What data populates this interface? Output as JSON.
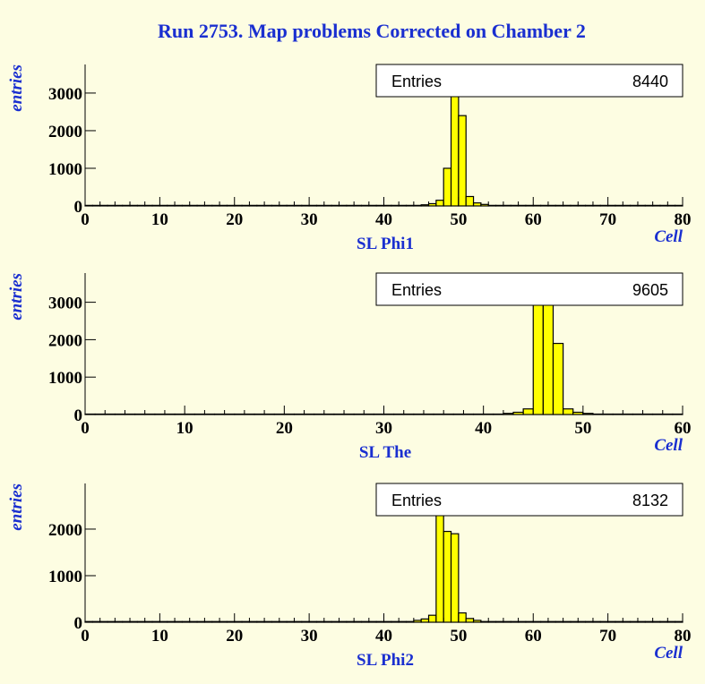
{
  "title": "Run 2753. Map problems Corrected on Chamber 2",
  "chart_data": [
    {
      "type": "histogram",
      "subtitle": "SL Phi1",
      "xlabel": "Cell",
      "ylabel": "entries",
      "color": "#ffff00",
      "stats": {
        "label": "Entries",
        "value": 8440
      },
      "bins": [
        0,
        1,
        2,
        3,
        4,
        5,
        6,
        7,
        8,
        9,
        10,
        11,
        12,
        13,
        14,
        15,
        16,
        17,
        18,
        19,
        20,
        21,
        22,
        23,
        24,
        25,
        26,
        27,
        28,
        29,
        30,
        31,
        32,
        33,
        34,
        35,
        36,
        37,
        38,
        39,
        40,
        41,
        42,
        43,
        44,
        45,
        46,
        47,
        48,
        49,
        50,
        51,
        52,
        53,
        54,
        55,
        56,
        57,
        58,
        59,
        60,
        61,
        62,
        63,
        64,
        65,
        66,
        67,
        68,
        69,
        70,
        71,
        72,
        73,
        74,
        75,
        76,
        77,
        78,
        79,
        80
      ],
      "counts": [
        15,
        15,
        15,
        15,
        15,
        15,
        15,
        15,
        15,
        15,
        15,
        15,
        15,
        15,
        15,
        15,
        15,
        15,
        15,
        15,
        15,
        15,
        15,
        15,
        15,
        15,
        15,
        15,
        15,
        15,
        15,
        15,
        15,
        15,
        15,
        15,
        15,
        15,
        15,
        15,
        15,
        15,
        15,
        15,
        15,
        30,
        60,
        150,
        1000,
        3350,
        2400,
        250,
        80,
        40,
        15,
        15,
        15,
        15,
        15,
        15,
        15,
        15,
        15,
        15,
        15,
        15,
        15,
        15,
        15,
        15,
        15,
        15,
        15,
        15,
        15,
        15,
        15,
        15,
        15,
        15
      ],
      "xlim": [
        0,
        80
      ],
      "xticks": [
        0,
        10,
        20,
        30,
        40,
        50,
        60,
        70,
        80
      ],
      "ylim": [
        0,
        3760
      ],
      "yticks": [
        0,
        1000,
        2000,
        3000
      ]
    },
    {
      "type": "histogram",
      "subtitle": "SL The",
      "xlabel": "Cell",
      "ylabel": "entries",
      "color": "#ffff00",
      "stats": {
        "label": "Entries",
        "value": 9605
      },
      "bins": [
        0,
        1,
        2,
        3,
        4,
        5,
        6,
        7,
        8,
        9,
        10,
        11,
        12,
        13,
        14,
        15,
        16,
        17,
        18,
        19,
        20,
        21,
        22,
        23,
        24,
        25,
        26,
        27,
        28,
        29,
        30,
        31,
        32,
        33,
        34,
        35,
        36,
        37,
        38,
        39,
        40,
        41,
        42,
        43,
        44,
        45,
        46,
        47,
        48,
        49,
        50,
        51,
        52,
        53,
        54,
        55,
        56,
        57,
        58,
        59,
        60
      ],
      "counts": [
        12,
        12,
        12,
        12,
        12,
        12,
        12,
        12,
        12,
        12,
        12,
        12,
        12,
        12,
        12,
        12,
        12,
        12,
        12,
        12,
        12,
        12,
        12,
        12,
        12,
        12,
        12,
        12,
        12,
        12,
        12,
        12,
        12,
        12,
        12,
        12,
        12,
        12,
        12,
        12,
        12,
        12,
        30,
        60,
        150,
        3200,
        3400,
        1900,
        150,
        60,
        30,
        12,
        12,
        12,
        12,
        12,
        12,
        12,
        12,
        12
      ],
      "xlim": [
        0,
        60
      ],
      "xticks": [
        0,
        10,
        20,
        30,
        40,
        50,
        60
      ],
      "ylim": [
        0,
        3780
      ],
      "yticks": [
        0,
        1000,
        2000,
        3000
      ]
    },
    {
      "type": "histogram",
      "subtitle": "SL Phi2",
      "xlabel": "Cell",
      "ylabel": "entries",
      "color": "#ffff00",
      "stats": {
        "label": "Entries",
        "value": 8132
      },
      "bins": [
        0,
        1,
        2,
        3,
        4,
        5,
        6,
        7,
        8,
        9,
        10,
        11,
        12,
        13,
        14,
        15,
        16,
        17,
        18,
        19,
        20,
        21,
        22,
        23,
        24,
        25,
        26,
        27,
        28,
        29,
        30,
        31,
        32,
        33,
        34,
        35,
        36,
        37,
        38,
        39,
        40,
        41,
        42,
        43,
        44,
        45,
        46,
        47,
        48,
        49,
        50,
        51,
        52,
        53,
        54,
        55,
        56,
        57,
        58,
        59,
        60,
        61,
        62,
        63,
        64,
        65,
        66,
        67,
        68,
        69,
        70,
        71,
        72,
        73,
        74,
        75,
        76,
        77,
        78,
        79,
        80
      ],
      "counts": [
        15,
        15,
        15,
        15,
        15,
        15,
        15,
        15,
        15,
        15,
        15,
        15,
        15,
        15,
        15,
        15,
        15,
        15,
        15,
        15,
        15,
        15,
        15,
        15,
        15,
        15,
        15,
        15,
        15,
        15,
        15,
        15,
        15,
        15,
        15,
        15,
        15,
        15,
        15,
        15,
        15,
        15,
        15,
        15,
        40,
        70,
        150,
        2600,
        1950,
        1900,
        200,
        80,
        40,
        15,
        15,
        15,
        15,
        15,
        15,
        15,
        15,
        15,
        15,
        15,
        15,
        15,
        15,
        15,
        15,
        15,
        15,
        15,
        15,
        15,
        15,
        15,
        15,
        15,
        15,
        15
      ],
      "xlim": [
        0,
        80
      ],
      "xticks": [
        0,
        10,
        20,
        30,
        40,
        50,
        60,
        70,
        80
      ],
      "ylim": [
        0,
        2980
      ],
      "yticks": [
        0,
        1000,
        2000
      ]
    }
  ]
}
